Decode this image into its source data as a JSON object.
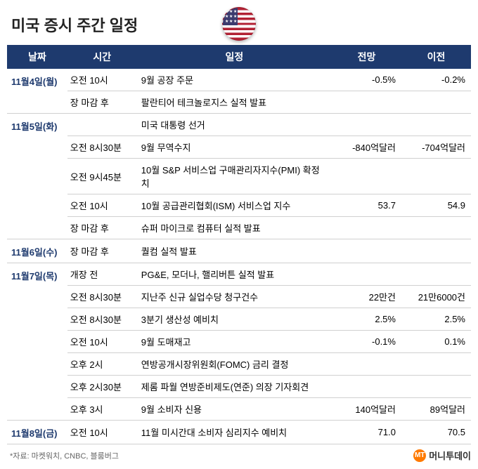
{
  "title": "미국 증시 주간 일정",
  "headers": {
    "date": "날짜",
    "time": "시간",
    "event": "일정",
    "forecast": "전망",
    "previous": "이전"
  },
  "days": [
    {
      "date": "11월4일(월)",
      "rows": [
        {
          "time": "오전 10시",
          "event": "9월 공장 주문",
          "forecast": "-0.5%",
          "previous": "-0.2%"
        },
        {
          "time": "장 마감 후",
          "event": "팔란티어 테크놀로지스 실적 발표",
          "forecast": "",
          "previous": ""
        }
      ]
    },
    {
      "date": "11월5일(화)",
      "rows": [
        {
          "time": "",
          "event": "미국 대통령 선거",
          "forecast": "",
          "previous": ""
        },
        {
          "time": "오전 8시30분",
          "event": "9월 무역수지",
          "forecast": "-840억달러",
          "previous": "-704억달러"
        },
        {
          "time": "오전 9시45분",
          "event": "10월 S&P 서비스업 구매관리자지수(PMI) 확정치",
          "forecast": "",
          "previous": ""
        },
        {
          "time": "오전 10시",
          "event": "10월 공급관리협회(ISM) 서비스업 지수",
          "forecast": "53.7",
          "previous": "54.9"
        },
        {
          "time": "장 마감 후",
          "event": "슈퍼 마이크로 컴퓨터 실적 발표",
          "forecast": "",
          "previous": ""
        }
      ]
    },
    {
      "date": "11월6일(수)",
      "rows": [
        {
          "time": "장 마감 후",
          "event": "퀄컴 실적 발표",
          "forecast": "",
          "previous": ""
        }
      ]
    },
    {
      "date": "11월7일(목)",
      "rows": [
        {
          "time": "개장 전",
          "event": "PG&E, 모더나, 핼리버튼 실적 발표",
          "forecast": "",
          "previous": ""
        },
        {
          "time": "오전 8시30분",
          "event": "지난주 신규 실업수당 청구건수",
          "forecast": "22만건",
          "previous": "21만6000건"
        },
        {
          "time": "오전 8시30분",
          "event": "3분기 생산성 예비치",
          "forecast": "2.5%",
          "previous": "2.5%"
        },
        {
          "time": "오전 10시",
          "event": "9월 도매재고",
          "forecast": "-0.1%",
          "previous": "0.1%"
        },
        {
          "time": "오후 2시",
          "event": "연방공개시장위원회(FOMC) 금리 결정",
          "forecast": "",
          "previous": ""
        },
        {
          "time": "오후 2시30분",
          "event": "제롬 파월 연방준비제도(연준) 의장 기자회견",
          "forecast": "",
          "previous": ""
        },
        {
          "time": "오후 3시",
          "event": "9월 소비자 신용",
          "forecast": "140억달러",
          "previous": "89억달러"
        }
      ]
    },
    {
      "date": "11월8일(금)",
      "rows": [
        {
          "time": "오전 10시",
          "event": "11월 미시간대 소비자 심리지수 예비치",
          "forecast": "71.0",
          "previous": "70.5"
        }
      ]
    }
  ],
  "source": "*자료: 마켓워치, CNBC, 블룸버그",
  "brand": {
    "icon": "MT",
    "name": "머니투데이"
  },
  "colors": {
    "header_bg": "#1e3a6e",
    "header_fg": "#ffffff",
    "border": "#d0d0d0",
    "date_color": "#1e3a6e",
    "source_color": "#666666",
    "brand_icon_bg": "#ff7a00"
  },
  "typography": {
    "title_size": 22,
    "header_size": 14,
    "body_size": 13,
    "source_size": 11
  }
}
